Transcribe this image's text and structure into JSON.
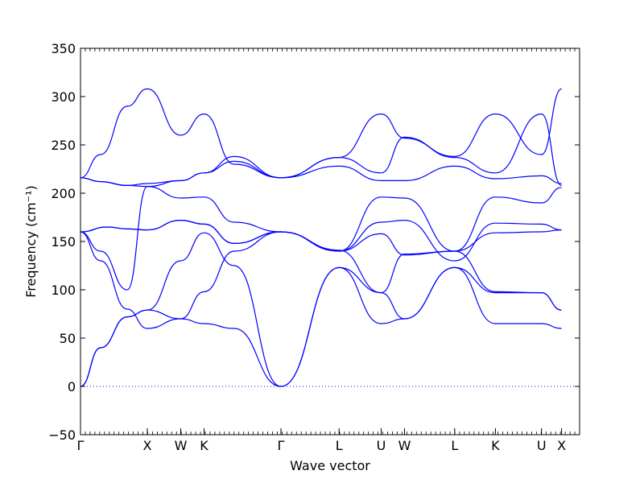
{
  "chart_data": {
    "type": "line",
    "title": "",
    "xlabel": "Wave vector",
    "ylabel": "Frequency (cm⁻¹)",
    "ylim": [
      -50,
      350
    ],
    "xlim": [
      0,
      7.47
    ],
    "yticks": [
      -50,
      0,
      50,
      100,
      150,
      200,
      250,
      300,
      350
    ],
    "high_symmetry_points": [
      {
        "label": "Γ",
        "x": 0.0
      },
      {
        "label": "X",
        "x": 1.0
      },
      {
        "label": "W",
        "x": 1.5
      },
      {
        "label": "K",
        "x": 1.85
      },
      {
        "label": "Γ",
        "x": 3.0
      },
      {
        "label": "L",
        "x": 3.87
      },
      {
        "label": "U",
        "x": 4.5
      },
      {
        "label": "W",
        "x": 4.85
      },
      {
        "label": "L",
        "x": 5.6
      },
      {
        "label": "K",
        "x": 6.21
      },
      {
        "label": "U",
        "x": 6.9
      },
      {
        "label": "X",
        "x": 7.2
      }
    ],
    "zero_line": true,
    "series_color": "#0000ff",
    "series": [
      {
        "x": [
          0,
          0.3,
          0.7,
          1.0,
          1.5,
          1.85,
          2.3,
          3.0,
          3.87,
          4.5,
          4.85,
          5.6,
          6.21,
          6.9,
          7.2
        ],
        "values": [
          0,
          40,
          72,
          79,
          70,
          98,
          140,
          160,
          141,
          97,
          137,
          140,
          98,
          97,
          79
        ]
      },
      {
        "x": [
          0,
          0.3,
          0.7,
          1.0,
          1.5,
          1.85,
          2.3,
          3.0,
          3.87,
          4.5,
          4.85,
          5.6,
          6.21,
          6.9,
          7.2
        ],
        "values": [
          0,
          40,
          72,
          79,
          130,
          159,
          125,
          0,
          123,
          97,
          70,
          123,
          97,
          97,
          79
        ]
      },
      {
        "x": [
          0,
          0.3,
          0.7,
          1.0,
          1.5,
          1.85,
          2.3,
          3.0,
          3.87,
          4.5,
          4.85,
          5.6,
          6.21,
          6.9,
          7.2
        ],
        "values": [
          160,
          130,
          80,
          60,
          70,
          65,
          60,
          0,
          123,
          65,
          70,
          123,
          65,
          65,
          60
        ]
      },
      {
        "x": [
          0,
          0.4,
          0.7,
          1.0,
          1.5,
          1.85,
          2.3,
          3.0,
          3.87,
          4.5,
          4.85,
          5.6,
          6.21,
          6.9,
          7.2
        ],
        "values": [
          160,
          165,
          163,
          162,
          172,
          168,
          148,
          160,
          140,
          158,
          136,
          140,
          159,
          160,
          162
        ]
      },
      {
        "x": [
          0,
          0.4,
          0.7,
          1.0,
          1.5,
          1.85,
          2.3,
          3.0,
          3.87,
          4.5,
          4.85,
          5.6,
          6.21,
          6.9,
          7.2
        ],
        "values": [
          160,
          165,
          163,
          162,
          172,
          168,
          148,
          160,
          140,
          170,
          172,
          130,
          169,
          168,
          162
        ]
      },
      {
        "x": [
          0,
          0.3,
          0.7,
          1.0,
          1.5,
          1.85,
          2.3,
          3.0,
          3.87,
          4.5,
          4.85,
          5.6,
          6.21,
          6.9,
          7.2
        ],
        "values": [
          160,
          140,
          100,
          207,
          195,
          196,
          170,
          160,
          140,
          196,
          195,
          140,
          196,
          190,
          206
        ]
      },
      {
        "x": [
          0,
          0.3,
          0.7,
          1.0,
          1.5,
          1.85,
          2.3,
          3.0,
          3.87,
          4.5,
          4.85,
          5.6,
          6.21,
          6.9,
          7.2
        ],
        "values": [
          216,
          212,
          208,
          207,
          213,
          221,
          233,
          216,
          228,
          213,
          213,
          228,
          215,
          218,
          210
        ]
      },
      {
        "x": [
          0,
          0.3,
          0.7,
          1.0,
          1.5,
          1.85,
          2.3,
          3.0,
          3.87,
          4.5,
          4.85,
          5.6,
          6.21,
          6.9,
          7.2
        ],
        "values": [
          216,
          212,
          208,
          210,
          213,
          221,
          238,
          216,
          237,
          221,
          258,
          237,
          221,
          282,
          208
        ]
      },
      {
        "x": [
          0,
          0.3,
          0.7,
          1.0,
          1.5,
          1.85,
          2.3,
          3.0,
          3.87,
          4.5,
          4.85,
          5.6,
          6.21,
          6.9,
          7.2
        ],
        "values": [
          216,
          240,
          290,
          308,
          260,
          282,
          230,
          216,
          237,
          282,
          257,
          238,
          282,
          240,
          308
        ]
      }
    ]
  }
}
